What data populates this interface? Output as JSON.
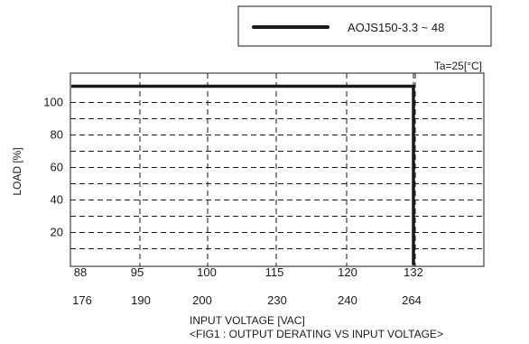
{
  "chart_data": {
    "type": "line",
    "title": "",
    "caption": "<FIG1 : OUTPUT DERATING VS INPUT VOLTAGE>",
    "condition": "Ta=25[°C]",
    "xlabel": "INPUT VOLTAGE [VAC]",
    "ylabel": "LOAD [%]",
    "x_tick_labels_row1": [
      "88",
      "95",
      "100",
      "115",
      "120",
      "132"
    ],
    "x_tick_labels_row2": [
      "176",
      "190",
      "200",
      "230",
      "240",
      "264"
    ],
    "y_ticks": [
      20,
      40,
      60,
      80,
      100
    ],
    "ylim": [
      0,
      110
    ],
    "grid": true,
    "legend_position": "top-right",
    "series": [
      {
        "name": "AOJS150-3.3 ~ 48",
        "color": "#1a1a1a",
        "x": [
          "88",
          "132",
          "132"
        ],
        "y": [
          110,
          110,
          0
        ]
      }
    ]
  }
}
